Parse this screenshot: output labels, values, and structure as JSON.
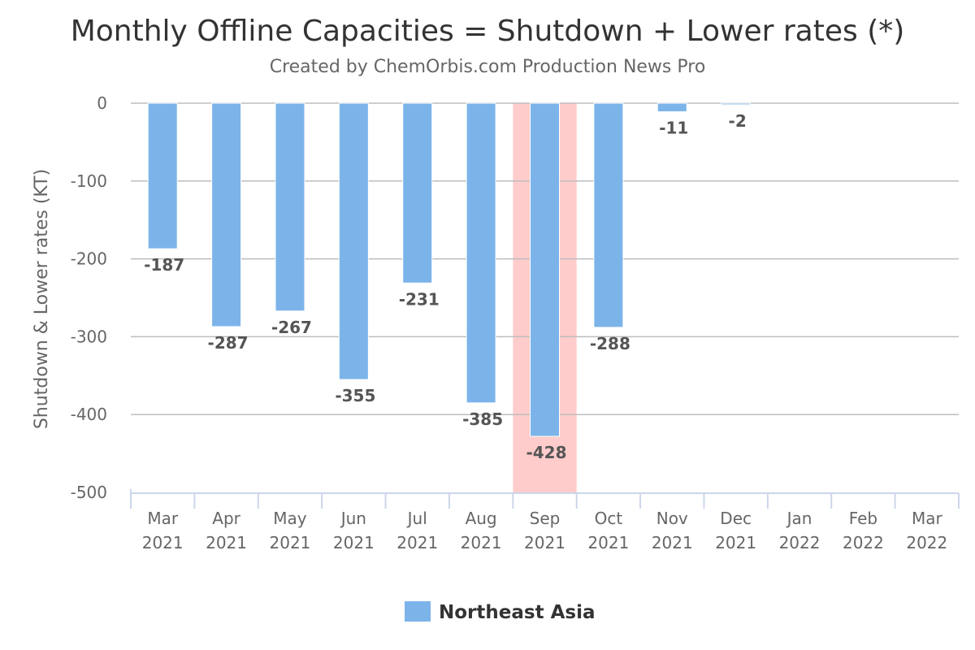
{
  "chart_data": {
    "type": "bar",
    "title": "Monthly Offline Capacities = Shutdown + Lower rates (*)",
    "subtitle": "Created by ChemOrbis.com Production News Pro",
    "xlabel": "",
    "ylabel": "Shutdown & Lower rates (KT)",
    "ylim": [
      -500,
      0
    ],
    "yticks": [
      "0",
      "-100",
      "-200",
      "-300",
      "-400",
      "-500"
    ],
    "ytick_values": [
      0,
      -100,
      -200,
      -300,
      -400,
      -500
    ],
    "categories": [
      [
        "Mar",
        "2021"
      ],
      [
        "Apr",
        "2021"
      ],
      [
        "May",
        "2021"
      ],
      [
        "Jun",
        "2021"
      ],
      [
        "Jul",
        "2021"
      ],
      [
        "Aug",
        "2021"
      ],
      [
        "Sep",
        "2021"
      ],
      [
        "Oct",
        "2021"
      ],
      [
        "Nov",
        "2021"
      ],
      [
        "Dec",
        "2021"
      ],
      [
        "Jan",
        "2022"
      ],
      [
        "Feb",
        "2022"
      ],
      [
        "Mar",
        "2022"
      ]
    ],
    "series": [
      {
        "name": "Northeast Asia",
        "color": "#7cb4ea",
        "values": [
          -187,
          -287,
          -267,
          -355,
          -231,
          -385,
          -428,
          -288,
          -11,
          -2,
          null,
          null,
          null
        ],
        "labels": [
          "-187",
          "-287",
          "-267",
          "-355",
          "-231",
          "-385",
          "-428",
          "-288",
          "-11",
          "-2",
          "",
          "",
          ""
        ]
      }
    ],
    "highlight_category_index": 6,
    "highlight_color": "#ffcccc",
    "grid": true,
    "grid_color": "#bdbdbd",
    "axis_color": "#ccd6eb",
    "legend_position": "bottom-center"
  }
}
